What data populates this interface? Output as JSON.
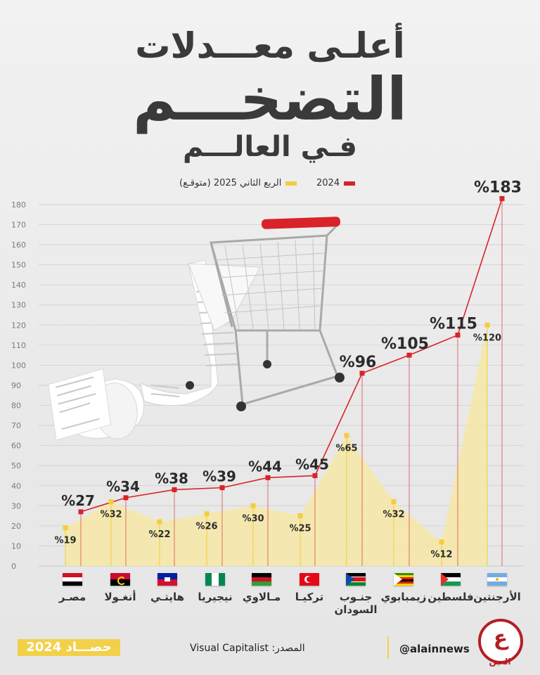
{
  "title": {
    "line1": "أعلـى معـــدلات",
    "line2": "التضخـــم",
    "line3": "فـي العالـــم"
  },
  "legend": {
    "series_2024": "2024",
    "series_2025": "الربع الثاني 2025 (متوقـع)"
  },
  "colors": {
    "red": "#d8232a",
    "yellow_point": "#f5cd3a",
    "yellow_fill": "#f6e7a6",
    "grid": "#cfcfcf",
    "axis_text": "#7a7a7a",
    "label_dark": "#2b2b2b"
  },
  "chart_data": {
    "type": "line",
    "ylim": [
      0,
      180
    ],
    "yticks": [
      0,
      10,
      20,
      30,
      40,
      50,
      60,
      70,
      80,
      90,
      100,
      110,
      120,
      130,
      140,
      150,
      160,
      170,
      180
    ],
    "categories": [
      "مصر",
      "أنغولا",
      "هايتي",
      "نيجيريا",
      "مالاوي",
      "تركيا",
      "جنوب السودان",
      "زيمبابوي",
      "فلسطين",
      "الأرجنتين"
    ],
    "series": [
      {
        "name": "2024",
        "values": [
          27,
          34,
          38,
          39,
          44,
          45,
          96,
          105,
          115,
          183
        ],
        "labels": [
          "%27",
          "%34",
          "%38",
          "%39",
          "%44",
          "%45",
          "%96",
          "%105",
          "%115",
          "%183"
        ]
      },
      {
        "name": "الربع الثاني 2025 (متوقـع)",
        "values": [
          19,
          32,
          22,
          26,
          30,
          25,
          65,
          32,
          12,
          120
        ],
        "labels": [
          "%19",
          "%32",
          "%22",
          "%26",
          "%30",
          "%25",
          "%65",
          "%32",
          "%12",
          "%120"
        ]
      }
    ]
  },
  "countries": [
    {
      "name": "مصـر",
      "flag": "egypt"
    },
    {
      "name": "أنغـولا",
      "flag": "angola"
    },
    {
      "name": "هايتـي",
      "flag": "haiti"
    },
    {
      "name": "نيجيريا",
      "flag": "nigeria"
    },
    {
      "name": "مـالاوي",
      "flag": "malawi"
    },
    {
      "name": "تركيـا",
      "flag": "turkey"
    },
    {
      "name": "جنـوب السودان",
      "flag": "south-sudan"
    },
    {
      "name": "زيمبابوي",
      "flag": "zimbabwe"
    },
    {
      "name": "فلسطين",
      "flag": "palestine"
    },
    {
      "name": "الأرجنتين",
      "flag": "argentina"
    }
  ],
  "footer": {
    "brand": "حصـــاد 2024",
    "source": "المصدر: Visual Capitalist",
    "handle": "@alainnews",
    "logo_text": "العين",
    "logo_glyph": "ع"
  }
}
